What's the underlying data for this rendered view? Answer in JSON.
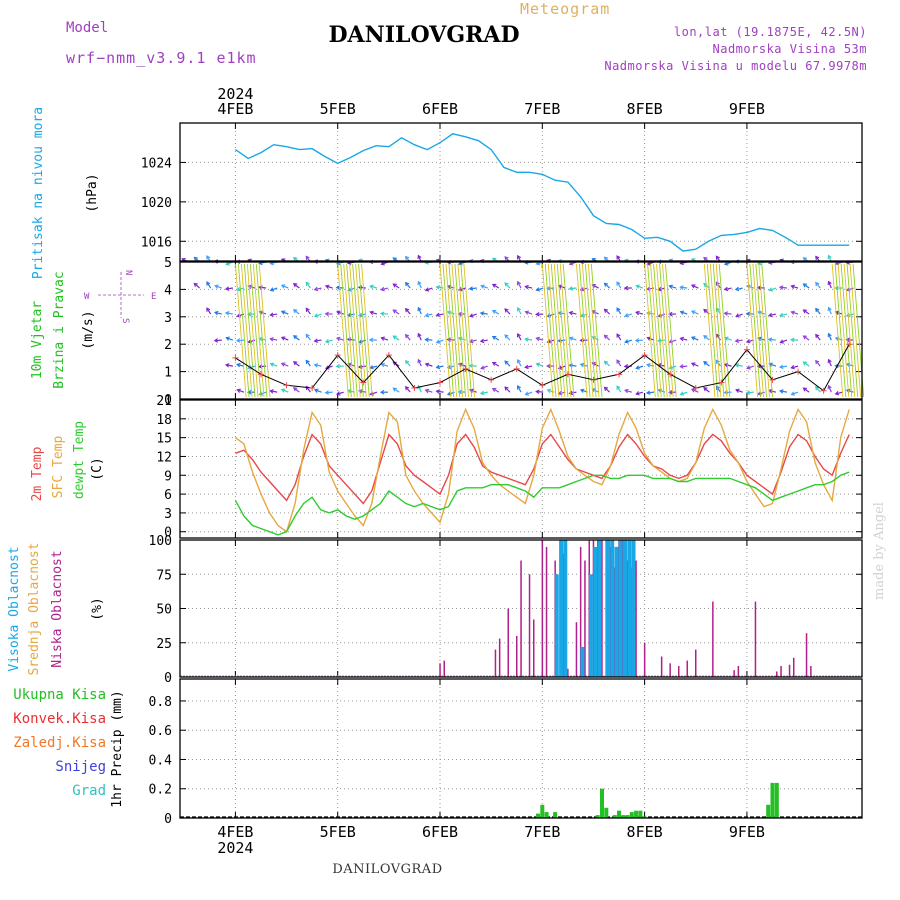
{
  "header": {
    "meteogram_label": "Meteogram",
    "model_label": "Model",
    "model_value": "wrf−nmm_v3.9.1  e1km",
    "location_title": "DANILOVGRAD",
    "lonlat": "lon,lat (19.1875E, 42.5N)",
    "altitude": "Nadmorska Visina 53m",
    "model_altitude": "Nadmorska Visina u modelu 67.9978m",
    "bottom_title": "DANILOVGRAD",
    "credit": "made by Angel"
  },
  "time_axis": {
    "year": "2024",
    "ticks": [
      "4FEB",
      "5FEB",
      "6FEB",
      "7FEB",
      "8FEB",
      "9FEB"
    ]
  },
  "colors": {
    "pressure": "#1aa7e6",
    "temp2m": "#e84848",
    "sfc_temp": "#e6a840",
    "dewpt": "#2ecc2e",
    "high_cloud": "#1aa7e6",
    "mid_cloud": "#e6a840",
    "low_cloud": "#b0208a",
    "total_precip": "#22c022",
    "wind_calm": "#8020d0",
    "wind_arrows_alt": "#1a7ae6"
  },
  "chart_data": [
    {
      "type": "line",
      "panel": "pressure",
      "ylabel_left": "Pritisak na nivou mora",
      "ylabel_unit": "(hPa)",
      "yticks": [
        "1024",
        "1020",
        "1016"
      ],
      "ylim": [
        1014,
        1028
      ],
      "x_hours": [
        0,
        3,
        6,
        9,
        12,
        15,
        18,
        21,
        24,
        27,
        30,
        33,
        36,
        39,
        42,
        45,
        48,
        51,
        54,
        57,
        60,
        63,
        66,
        69,
        72,
        75,
        78,
        81,
        84,
        87,
        90,
        93,
        96,
        99,
        102,
        105,
        108,
        111,
        114,
        117,
        120,
        123,
        126,
        129,
        132,
        135,
        138,
        141,
        144
      ],
      "series": [
        {
          "name": "pressure",
          "values": [
            1025.3,
            1024.4,
            1025.0,
            1025.8,
            1025.6,
            1025.3,
            1025.4,
            1024.6,
            1023.9,
            1024.5,
            1025.2,
            1025.7,
            1025.6,
            1026.5,
            1025.8,
            1025.3,
            1026.0,
            1026.9,
            1026.6,
            1026.2,
            1025.3,
            1023.5,
            1023.0,
            1023.0,
            1022.8,
            1022.2,
            1022.0,
            1020.5,
            1018.6,
            1017.8,
            1017.7,
            1017.2,
            1016.3,
            1016.4,
            1016.0,
            1015.0,
            1015.2,
            1016.0,
            1016.6,
            1016.7,
            1016.9,
            1017.3,
            1017.1,
            1016.4,
            1015.6,
            1015.6,
            1015.6,
            1015.6,
            1015.6
          ]
        }
      ]
    },
    {
      "type": "line",
      "panel": "wind",
      "ylabel_left": [
        "10m Vjetar",
        "Brzina i Pravac"
      ],
      "ylabel_unit": "(m/s)",
      "compass": [
        "N",
        "E",
        "S",
        "W"
      ],
      "yticks": [
        "5",
        "4",
        "3",
        "2",
        "1",
        "0"
      ],
      "ylim": [
        0,
        5
      ],
      "x_hours": [
        0,
        6,
        12,
        18,
        24,
        30,
        36,
        42,
        48,
        54,
        60,
        66,
        72,
        78,
        84,
        90,
        96,
        102,
        108,
        114,
        120,
        126,
        132,
        138,
        144
      ],
      "series": [
        {
          "name": "wind speed",
          "values": [
            1.5,
            0.9,
            0.5,
            0.4,
            1.6,
            0.6,
            1.6,
            0.4,
            0.6,
            1.1,
            0.7,
            1.1,
            0.5,
            0.9,
            0.7,
            0.9,
            1.6,
            0.9,
            0.4,
            0.6,
            1.8,
            0.7,
            1.0,
            0.3,
            2.0
          ]
        }
      ]
    },
    {
      "type": "line",
      "panel": "temperature",
      "ylabel_left": [
        "2m Temp",
        "SFC Temp",
        "dewpt Temp"
      ],
      "ylabel_unit": "(C)",
      "yticks": [
        "21",
        "18",
        "15",
        "12",
        "9",
        "6",
        "3",
        "0"
      ],
      "ylim": [
        -1,
        21
      ],
      "x_hours": [
        0,
        2,
        4,
        6,
        8,
        10,
        12,
        14,
        16,
        18,
        20,
        22,
        24,
        26,
        28,
        30,
        32,
        34,
        36,
        38,
        40,
        42,
        44,
        46,
        48,
        50,
        52,
        54,
        56,
        58,
        60,
        62,
        64,
        66,
        68,
        70,
        72,
        74,
        76,
        78,
        80,
        82,
        84,
        86,
        88,
        90,
        92,
        94,
        96,
        98,
        100,
        102,
        104,
        106,
        108,
        110,
        112,
        114,
        116,
        118,
        120,
        122,
        124,
        126,
        128,
        130,
        132,
        134,
        136,
        138,
        140,
        142,
        144
      ],
      "series": [
        {
          "name": "2m Temp",
          "values": [
            12.5,
            13.0,
            11.5,
            9.5,
            8.0,
            6.5,
            5.0,
            7.5,
            12.0,
            15.5,
            14.0,
            10.5,
            9.0,
            7.5,
            6.0,
            4.5,
            6.5,
            11.0,
            15.5,
            14.0,
            10.5,
            9.0,
            8.0,
            7.0,
            6.0,
            9.0,
            14.0,
            15.5,
            13.5,
            10.5,
            9.5,
            9.0,
            8.5,
            8.0,
            7.5,
            10.0,
            14.0,
            15.5,
            13.5,
            11.5,
            10.0,
            9.5,
            9.0,
            8.5,
            10.5,
            13.5,
            15.5,
            14.0,
            12.0,
            10.5,
            10.0,
            9.0,
            8.5,
            9.0,
            11.0,
            14.0,
            15.5,
            14.5,
            12.5,
            11.0,
            9.0,
            8.0,
            7.0,
            6.0,
            9.5,
            13.5,
            15.5,
            14.5,
            12.0,
            10.0,
            9.0,
            12.5,
            15.5
          ]
        },
        {
          "name": "SFC Temp",
          "values": [
            15.0,
            14.0,
            9.5,
            6.0,
            3.0,
            1.0,
            0.0,
            4.5,
            13.0,
            19.0,
            17.0,
            9.5,
            6.5,
            4.5,
            2.5,
            1.0,
            4.5,
            12.0,
            19.0,
            17.5,
            9.0,
            6.5,
            4.5,
            3.0,
            1.5,
            6.0,
            16.0,
            19.5,
            16.5,
            11.0,
            9.0,
            7.5,
            6.5,
            5.5,
            4.5,
            9.0,
            16.5,
            19.5,
            16.0,
            12.0,
            10.0,
            9.0,
            8.0,
            7.5,
            10.5,
            15.5,
            19.0,
            16.5,
            12.5,
            10.5,
            9.5,
            8.5,
            8.0,
            8.5,
            11.0,
            16.5,
            19.5,
            17.0,
            13.0,
            11.0,
            8.0,
            6.0,
            4.0,
            4.5,
            10.0,
            16.0,
            19.5,
            17.5,
            11.0,
            7.5,
            5.0,
            15.0,
            19.5
          ]
        },
        {
          "name": "dewpt Temp",
          "values": [
            5.0,
            2.5,
            1.0,
            0.5,
            0.0,
            -0.5,
            0.0,
            2.5,
            4.5,
            5.5,
            3.5,
            3.0,
            3.5,
            2.5,
            2.0,
            2.5,
            3.5,
            4.5,
            6.5,
            5.5,
            4.5,
            4.0,
            4.5,
            4.0,
            3.5,
            4.0,
            6.5,
            7.0,
            7.0,
            7.0,
            7.5,
            7.5,
            7.5,
            7.0,
            6.5,
            5.5,
            7.0,
            7.0,
            7.0,
            7.5,
            8.0,
            8.5,
            9.0,
            9.0,
            8.5,
            8.5,
            9.0,
            9.0,
            9.0,
            8.5,
            8.5,
            8.5,
            8.0,
            8.0,
            8.5,
            8.5,
            8.5,
            8.5,
            8.5,
            8.0,
            7.5,
            7.0,
            6.0,
            5.0,
            5.5,
            6.0,
            6.5,
            7.0,
            7.5,
            7.5,
            8.0,
            9.0,
            9.5
          ]
        }
      ]
    },
    {
      "type": "bar",
      "panel": "clouds",
      "ylabel_left": [
        "Visoka Oblacnost",
        "Srednja Oblacnost",
        "Niska Oblacnost"
      ],
      "ylabel_unit": "(%)",
      "yticks": [
        "100",
        "75",
        "50",
        "25",
        "0"
      ],
      "ylim": [
        0,
        100
      ],
      "series": [
        {
          "name": "Niska Oblacnost",
          "x_hours": [
            48,
            49,
            61,
            62,
            64,
            66,
            67,
            69,
            70,
            72,
            73,
            75,
            77,
            78,
            80,
            81,
            82,
            83,
            84,
            85,
            86,
            87,
            88,
            89,
            90,
            91,
            92,
            93,
            94,
            96,
            100,
            102,
            104,
            106,
            108,
            112,
            117,
            118,
            122,
            127,
            128,
            130,
            131,
            134,
            135
          ],
          "values": [
            10,
            12,
            20,
            28,
            50,
            30,
            85,
            75,
            42,
            100,
            95,
            85,
            90,
            6,
            40,
            95,
            85,
            100,
            100,
            100,
            100,
            100,
            95,
            80,
            100,
            100,
            85,
            80,
            85,
            25,
            15,
            10,
            8,
            12,
            20,
            55,
            5,
            8,
            55,
            4,
            8,
            9,
            14,
            32,
            8
          ]
        },
        {
          "name": "Srednja Oblacnost",
          "x_hours": [
            83,
            85,
            87,
            89,
            91,
            93
          ],
          "values": [
            50,
            95,
            100,
            95,
            100,
            90
          ]
        },
        {
          "name": "Visoka Oblacnost",
          "x_hours": [
            76,
            77,
            78,
            82,
            84,
            85,
            86,
            88,
            89,
            90,
            91,
            92,
            93,
            94
          ],
          "values": [
            75,
            100,
            100,
            22,
            75,
            95,
            100,
            100,
            100,
            95,
            100,
            100,
            100,
            100
          ]
        }
      ]
    },
    {
      "type": "bar",
      "panel": "precipitation",
      "ylabel_left": [
        "Ukupna Kisa",
        "Konvek.Kisa",
        "Zaledj.Kisa",
        "Snijeg",
        "Grad"
      ],
      "ylabel_unit": "1hr Precip (mm)",
      "yticks": [
        "0.8",
        "0.6",
        "0.4",
        "0.2",
        "0"
      ],
      "ylim": [
        0,
        0.95
      ],
      "series": [
        {
          "name": "Ukupna Kisa",
          "x_hours": [
            71,
            72,
            73,
            75,
            85,
            86,
            87,
            89,
            90,
            91,
            92,
            93,
            94,
            95,
            96,
            125,
            126,
            127
          ],
          "values": [
            0.03,
            0.09,
            0.04,
            0.04,
            0.02,
            0.2,
            0.07,
            0.02,
            0.05,
            0.02,
            0.02,
            0.04,
            0.05,
            0.05,
            0.01,
            0.09,
            0.24,
            0.24
          ]
        }
      ]
    }
  ]
}
